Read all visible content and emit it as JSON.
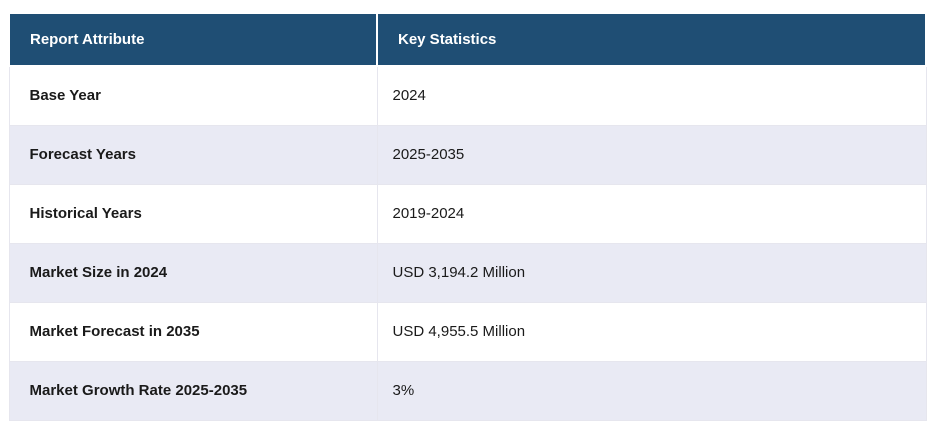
{
  "table": {
    "columns": [
      {
        "label": "Report Attribute"
      },
      {
        "label": "Key Statistics"
      }
    ],
    "rows": [
      {
        "attribute": "Base Year",
        "value": "2024"
      },
      {
        "attribute": "Forecast Years",
        "value": "2025-2035"
      },
      {
        "attribute": "Historical Years",
        "value": "2019-2024"
      },
      {
        "attribute": "Market Size in 2024",
        "value": "USD 3,194.2 Million"
      },
      {
        "attribute": "Market Forecast in 2035",
        "value": "USD 4,955.5 Million"
      },
      {
        "attribute": "Market Growth Rate 2025-2035",
        "value": "3%"
      }
    ],
    "colors": {
      "header_bg": "#1F4E74",
      "header_text": "#FFFFFF",
      "row_bg": "#FFFFFF",
      "row_alt_bg": "#E9EAF4",
      "body_text": "#1A1A1A",
      "border": "#D9D9E0"
    }
  }
}
